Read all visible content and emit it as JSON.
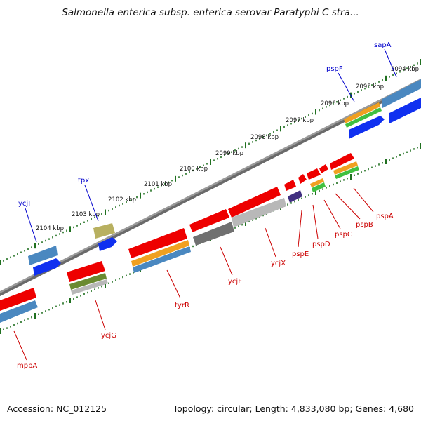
{
  "title": "Salmonella enterica subsp. enterica serovar Paratyphi C stra...",
  "footer": {
    "accession": "Accession: NC_012125",
    "summary": "Topology: circular; Length: 4,833,080 bp; Genes: 4,680"
  },
  "scale": {
    "unit": "kbp",
    "labels": [
      "2094 kbp",
      "2095 kbp",
      "2096 kbp",
      "2097 kbp",
      "2098 kbp",
      "2099 kbp",
      "2100 kbp",
      "2101 kbp",
      "2102 kbp",
      "2103 kbp",
      "2104 kbp"
    ]
  },
  "colors": {
    "cds_red": "#ee0000",
    "gene_blue": "#4a88c0",
    "gene_dark_blue": "#1030f0",
    "gene_orange": "#f0a020",
    "gene_green": "#40c040",
    "gene_olive": "#6a8a30",
    "gene_khaki": "#b8b060",
    "gene_purple": "#403080",
    "gene_gray": "#707070",
    "gene_lightgray": "#b8b8b8",
    "backbone": "#8a8a8a",
    "tick": "#207020",
    "label_forward": "#0000cc",
    "label_reverse": "#cc0000"
  },
  "genes": {
    "forward": [
      "sapA",
      "pspF",
      "tpx",
      "ycjI"
    ],
    "reverse": [
      "pspA",
      "pspB",
      "pspC",
      "pspD",
      "pspE",
      "ycjX",
      "ycjF",
      "tyrR",
      "ycjG",
      "mppA"
    ]
  }
}
